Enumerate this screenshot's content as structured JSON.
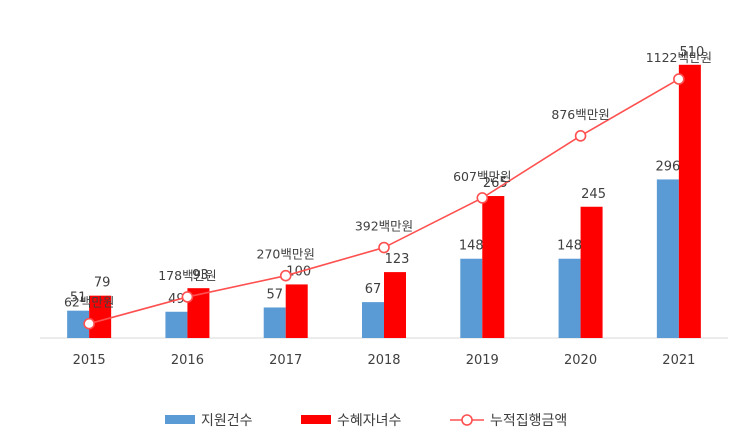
{
  "chart_data": {
    "type": "bar",
    "title": "",
    "xlabel": "",
    "ylabel": "",
    "categories": [
      "2015",
      "2016",
      "2017",
      "2018",
      "2019",
      "2020",
      "2021"
    ],
    "series": [
      {
        "name": "지원건수",
        "kind": "bar",
        "color": "#5b9bd5",
        "values": [
          51,
          49,
          57,
          67,
          148,
          148,
          296
        ],
        "labels": [
          "51",
          "49",
          "57",
          "67",
          "148",
          "148",
          "296"
        ]
      },
      {
        "name": "수혜자녀수",
        "kind": "bar",
        "color": "#ff0000",
        "values": [
          79,
          93,
          100,
          123,
          265,
          245,
          510
        ],
        "labels": [
          "79",
          "93",
          "100",
          "123",
          "265",
          "245",
          "510"
        ]
      },
      {
        "name": "누적집행금액",
        "kind": "line",
        "color": "#ff5050",
        "values": [
          62,
          178,
          270,
          392,
          607,
          876,
          1122
        ],
        "labels": [
          "62백만원",
          "178백만원",
          "270백만원",
          "392백만원",
          "607백만원",
          "876백만원",
          "1122백만원"
        ]
      }
    ],
    "ylim_bars": [
      0,
      560
    ],
    "ylim_line": [
      0,
      1300
    ],
    "legend": "bottom",
    "grid": false
  }
}
